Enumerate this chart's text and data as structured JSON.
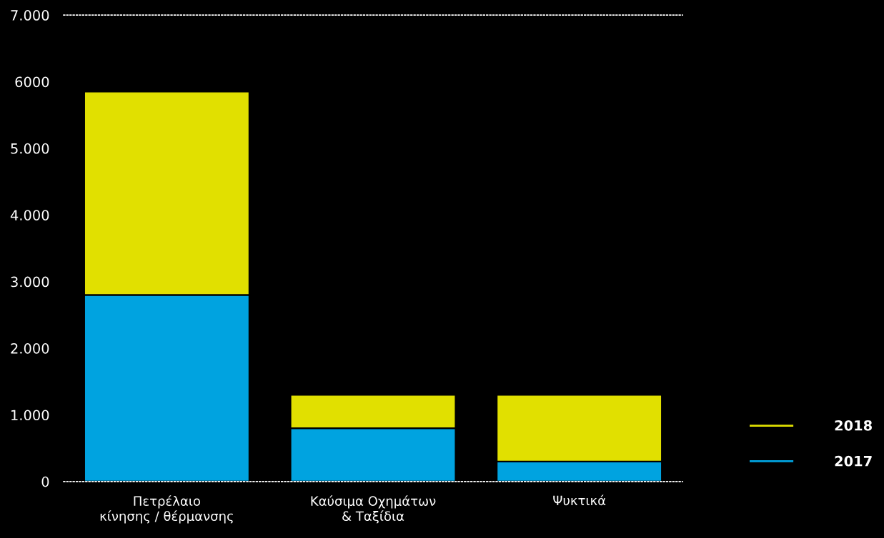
{
  "chart_data": {
    "type": "bar",
    "stacked": true,
    "categories": [
      "Πετρέλαιο\nκίνησης / θέρμανσης",
      "Καύσιμα Οχημάτων\n& Ταξίδια",
      "Ψυκτικά"
    ],
    "series": [
      {
        "name": "2017",
        "color": "#00a3e0",
        "values": [
          2800,
          800,
          300
        ]
      },
      {
        "name": "2018",
        "color": "#e1e000",
        "values": [
          3050,
          500,
          1000
        ]
      }
    ],
    "ylim": [
      0,
      7000
    ],
    "yticks": [
      0,
      {
        "value": 1000,
        "label": "1.000"
      },
      {
        "value": 2000,
        "label": "2.000"
      },
      {
        "value": 3000,
        "label": "3.000"
      },
      {
        "value": 4000,
        "label": "4.000"
      },
      {
        "value": 5000,
        "label": "5.000"
      },
      6000,
      {
        "value": 7000,
        "label": "7.000"
      }
    ],
    "grid": false,
    "legend": "bottom right"
  }
}
